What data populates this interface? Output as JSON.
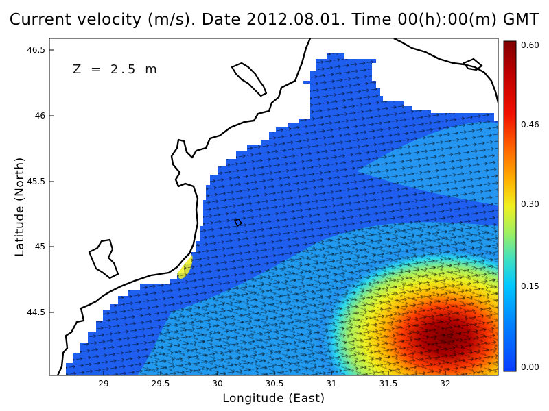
{
  "title": "Current velocity (m/s). Date 2012.08.01. Time 00(h):00(m) GMT",
  "depth_label": "Z = 2.5 m",
  "x_axis": {
    "label": "Longitude (East)",
    "ticks": [
      "29",
      "29.5",
      "30",
      "30.5",
      "31",
      "31.5",
      "32"
    ]
  },
  "y_axis": {
    "label": "Latitude (North)",
    "ticks": [
      "44.5",
      "45",
      "45.5",
      "46",
      "46.5"
    ]
  },
  "colorbar": {
    "ticks": [
      "0.60",
      "0.46",
      "0.30",
      "0.15",
      "0.00"
    ],
    "colors": [
      "#0a3cff",
      "#0080ff",
      "#00c8ff",
      "#40e0c0",
      "#a0f060",
      "#f0f020",
      "#ffb000",
      "#ff6000",
      "#f01000",
      "#c00000",
      "#800000"
    ]
  },
  "map": {
    "land_color": "#ffffff",
    "coastline_color": "#000000",
    "water_base_color": "#1f5ff0"
  }
}
